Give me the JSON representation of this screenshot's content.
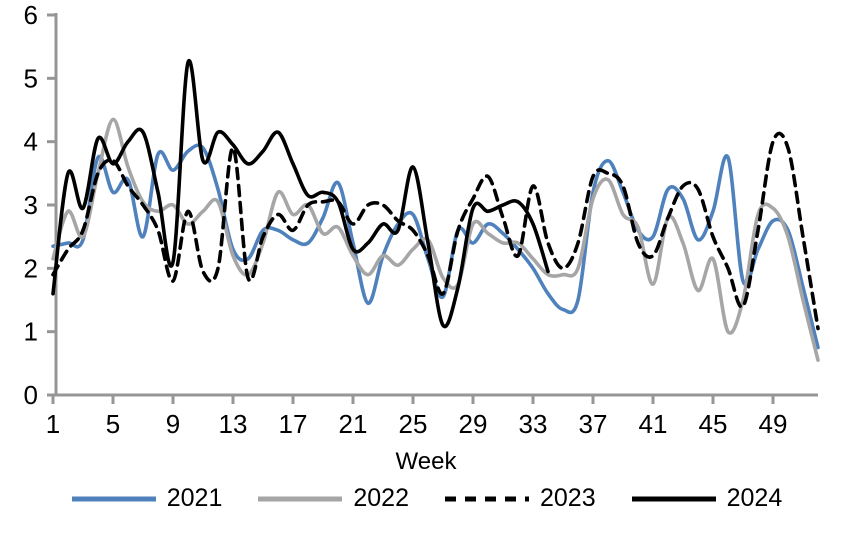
{
  "chart_data": {
    "type": "line",
    "title": "",
    "xlabel": "Week",
    "ylabel": "",
    "xlim": [
      1,
      52
    ],
    "ylim": [
      0,
      6
    ],
    "x_ticks": [
      1,
      5,
      9,
      13,
      17,
      21,
      25,
      29,
      33,
      37,
      41,
      45,
      49
    ],
    "y_ticks": [
      0,
      1,
      2,
      3,
      4,
      5,
      6
    ],
    "grid": "off",
    "legend_position": "bottom",
    "axis_color": "#969696",
    "series": [
      {
        "name": "2021",
        "color": "#4F81BD",
        "style": "solid",
        "values": [
          2.35,
          2.4,
          2.45,
          3.75,
          3.2,
          3.4,
          2.5,
          3.8,
          3.55,
          3.85,
          3.9,
          3.25,
          2.3,
          2.15,
          2.6,
          2.6,
          2.45,
          2.4,
          2.8,
          3.35,
          2.4,
          1.45,
          2.2,
          2.7,
          2.85,
          2.15,
          1.55,
          2.6,
          2.4,
          2.7,
          2.55,
          2.3,
          2.0,
          1.6,
          1.35,
          1.5,
          3.2,
          3.7,
          3.2,
          2.6,
          2.5,
          3.25,
          3.1,
          2.45,
          2.9,
          3.75,
          1.8,
          2.3,
          2.75,
          2.6,
          1.7,
          0.75
        ]
      },
      {
        "name": "2022",
        "color": "#A6A6A6",
        "style": "solid",
        "values": [
          2.15,
          2.9,
          2.5,
          3.5,
          4.35,
          3.6,
          3.05,
          2.9,
          3.0,
          2.7,
          2.9,
          3.05,
          2.2,
          1.9,
          2.4,
          3.2,
          2.85,
          3.0,
          2.55,
          2.65,
          2.2,
          1.9,
          2.2,
          2.05,
          2.3,
          2.45,
          1.85,
          1.75,
          2.7,
          2.55,
          2.4,
          2.4,
          2.15,
          1.9,
          1.9,
          2.0,
          3.1,
          3.4,
          2.85,
          2.65,
          1.75,
          2.8,
          2.4,
          1.65,
          2.15,
          1.0,
          1.5,
          2.85,
          2.95,
          2.5,
          1.5,
          0.55
        ]
      },
      {
        "name": "2023",
        "color": "#000000",
        "style": "dashed",
        "values": [
          1.9,
          2.3,
          2.6,
          3.5,
          3.7,
          3.3,
          3.0,
          2.6,
          1.8,
          2.9,
          1.95,
          2.0,
          3.9,
          1.85,
          2.5,
          2.85,
          2.6,
          3.0,
          3.05,
          3.05,
          2.7,
          3.0,
          3.0,
          2.75,
          2.6,
          2.2,
          1.6,
          2.6,
          3.1,
          3.45,
          2.8,
          2.2,
          3.3,
          2.4,
          2.0,
          2.4,
          3.45,
          3.5,
          3.3,
          2.4,
          2.2,
          2.8,
          3.3,
          3.25,
          2.5,
          2.0,
          1.4,
          2.6,
          4.0,
          3.9,
          2.5,
          1.05
        ]
      },
      {
        "name": "2024",
        "color": "#000000",
        "style": "solid",
        "values": [
          1.6,
          3.5,
          2.95,
          4.05,
          3.65,
          4.0,
          4.15,
          3.2,
          2.1,
          5.25,
          3.7,
          4.15,
          3.95,
          3.65,
          3.85,
          4.15,
          3.65,
          3.15,
          3.2,
          3.05,
          2.3,
          2.4,
          2.7,
          2.6,
          3.6,
          2.4,
          1.1,
          1.7,
          2.95,
          2.9,
          3.0,
          3.05,
          2.7,
          1.95
        ]
      }
    ]
  }
}
